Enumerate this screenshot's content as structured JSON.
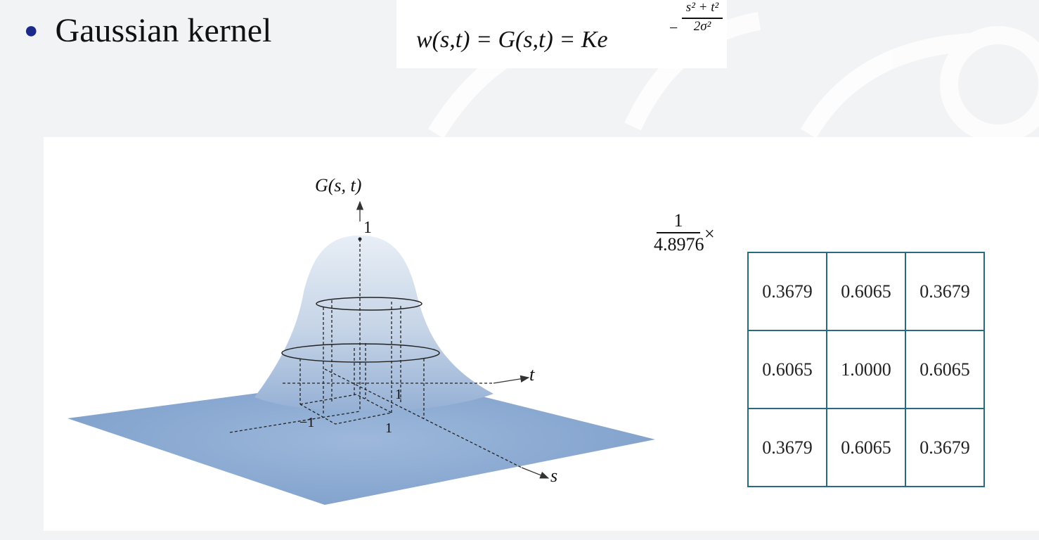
{
  "slide": {
    "bullet_text": "Gaussian kernel",
    "formula": {
      "lhs": "w(s,t) = G(s,t) = Ke",
      "exponent_sign": "−",
      "exponent_numerator": "s² + t²",
      "exponent_denominator": "2σ²"
    }
  },
  "figure": {
    "axis_g_label": "G(s, t)",
    "peak_label": "1",
    "axis_t_label": "t",
    "axis_s_label": "s",
    "tick_t_label": "1",
    "tick_neg1_label": "−1",
    "tick_s_label": "1",
    "fraction": {
      "numerator": "1",
      "denominator": "4.8976",
      "times": "×"
    },
    "kernel": [
      [
        "0.3679",
        "0.6065",
        "0.3679"
      ],
      [
        "0.6065",
        "1.0000",
        "0.6065"
      ],
      [
        "0.3679",
        "0.6065",
        "0.3679"
      ]
    ]
  },
  "colors": {
    "surface_top": "#c4d3e6",
    "surface_base": "#8eabd2",
    "table_border": "#2a6a80",
    "bullet": "#1b2a8a"
  }
}
